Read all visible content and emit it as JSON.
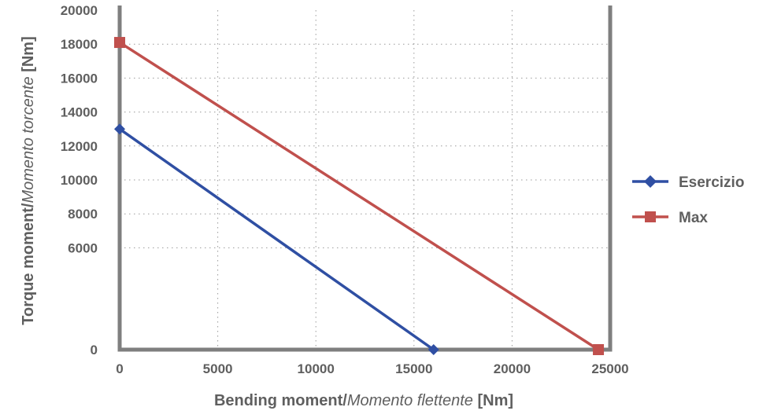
{
  "chart_data": {
    "type": "line",
    "xlabel": {
      "main": "Bending moment",
      "sep": "/",
      "alt": "Momento flettente",
      "unit": " [Nm]"
    },
    "ylabel": {
      "main": "Torque moment",
      "sep": "/",
      "alt": "Momento torcente",
      "unit": " [Nm]"
    },
    "xlim": [
      0,
      25000
    ],
    "ylim": [
      0,
      20000
    ],
    "x_ticks": [
      "0",
      "5000",
      "10000",
      "15000",
      "20000",
      "25000"
    ],
    "y_ticks": [
      "0",
      "6000",
      "8000",
      "10000",
      "12000",
      "14000",
      "16000",
      "18000",
      "20000"
    ],
    "grid": "dotted",
    "legend_position": "right",
    "series": [
      {
        "name": "Esercizio",
        "color": "#2f4fa3",
        "marker": "diamond",
        "points": [
          {
            "x": 0,
            "y": 13000
          },
          {
            "x": 16000,
            "y": 0
          }
        ]
      },
      {
        "name": "Max",
        "color": "#c0504d",
        "marker": "square",
        "points": [
          {
            "x": 0,
            "y": 18100
          },
          {
            "x": 24400,
            "y": 0
          }
        ]
      }
    ],
    "colors": {
      "axis": "#7f7f7f",
      "grid": "#9a9a9a",
      "text": "#5f5f5f"
    }
  }
}
